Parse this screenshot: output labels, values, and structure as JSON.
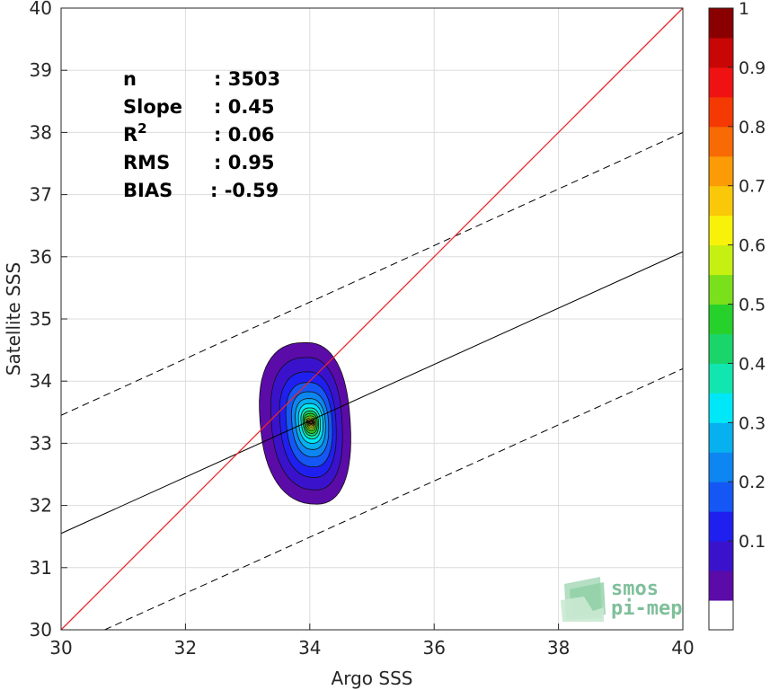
{
  "chart_data": {
    "type": "contour",
    "xlabel": "Argo SSS",
    "ylabel": "Satellite SSS",
    "xlim": [
      30,
      40
    ],
    "ylim": [
      30,
      40
    ],
    "xticks": [
      "30",
      "32",
      "34",
      "36",
      "38",
      "40"
    ],
    "yticks": [
      "30",
      "31",
      "32",
      "33",
      "34",
      "35",
      "36",
      "37",
      "38",
      "39",
      "40"
    ],
    "grid": true,
    "stats": [
      {
        "key": "n",
        "value": ": 3503"
      },
      {
        "key": "Slope",
        "value": ": 0.45"
      },
      {
        "key": "R",
        "sup": "2",
        "value": ": 0.06"
      },
      {
        "key": "RMS",
        "value": ": 0.95"
      },
      {
        "key": "BIAS",
        "value": ": -0.59"
      }
    ],
    "lines": {
      "identity": {
        "x": [
          30,
          40
        ],
        "y": [
          30,
          40
        ],
        "color": "#e8262d"
      },
      "regression": {
        "x": [
          30,
          40
        ],
        "y": [
          31.55,
          36.08
        ],
        "color": "#000000"
      },
      "upper_bound": {
        "x": [
          30,
          40
        ],
        "y": [
          33.45,
          38.0
        ],
        "color": "#000000",
        "dashed": true
      },
      "lower_bound": {
        "x": [
          30.7,
          40
        ],
        "y": [
          30.0,
          34.2
        ],
        "color": "#000000",
        "dashed": true
      }
    },
    "density": {
      "center": {
        "x": 34.02,
        "y": 33.35
      },
      "contour_levels": [
        {
          "level": 0.05,
          "x": [
            33.2,
            34.65
          ],
          "y": [
            32.02,
            34.62
          ]
        },
        {
          "level": 0.1,
          "x": [
            33.38,
            34.52
          ],
          "y": [
            32.25,
            34.38
          ]
        },
        {
          "level": 0.15,
          "x": [
            33.52,
            34.42
          ],
          "y": [
            32.45,
            34.15
          ]
        },
        {
          "level": 0.2,
          "x": [
            33.62,
            34.36
          ],
          "y": [
            32.62,
            33.98
          ]
        },
        {
          "level": 0.25,
          "x": [
            33.71,
            34.3
          ],
          "y": [
            32.78,
            33.83
          ]
        },
        {
          "level": 0.3,
          "x": [
            33.77,
            34.25
          ],
          "y": [
            32.9,
            33.72
          ]
        },
        {
          "level": 0.35,
          "x": [
            33.82,
            34.21
          ],
          "y": [
            33.0,
            33.64
          ]
        },
        {
          "level": 0.4,
          "x": [
            33.86,
            34.17
          ],
          "y": [
            33.07,
            33.57
          ]
        },
        {
          "level": 0.45,
          "x": [
            33.89,
            34.14
          ],
          "y": [
            33.12,
            33.52
          ]
        },
        {
          "level": 0.5,
          "x": [
            33.91,
            34.12
          ],
          "y": [
            33.16,
            33.48
          ]
        },
        {
          "level": 0.55,
          "x": [
            33.93,
            34.1
          ],
          "y": [
            33.2,
            33.44
          ]
        },
        {
          "level": 0.6,
          "x": [
            33.95,
            34.08
          ],
          "y": [
            33.23,
            33.41
          ]
        },
        {
          "level": 0.65,
          "x": [
            33.96,
            34.07
          ],
          "y": [
            33.26,
            33.39
          ]
        },
        {
          "level": 0.7,
          "x": [
            33.97,
            34.06
          ],
          "y": [
            33.28,
            33.37
          ]
        },
        {
          "level": 0.75,
          "x": [
            33.98,
            34.05
          ],
          "y": [
            33.3,
            33.36
          ]
        },
        {
          "level": 0.8,
          "x": [
            33.99,
            34.04
          ],
          "y": [
            33.31,
            33.35
          ]
        },
        {
          "level": 0.85,
          "x": [
            34.0,
            34.04
          ],
          "y": [
            33.32,
            33.35
          ]
        }
      ]
    },
    "colorbar": {
      "ticks": [
        "0.1",
        "0.2",
        "0.3",
        "0.4",
        "0.5",
        "0.6",
        "0.7",
        "0.8",
        "0.9",
        "1"
      ],
      "tick_values": [
        0.1,
        0.2,
        0.3,
        0.4,
        0.5,
        0.6,
        0.7,
        0.8,
        0.9,
        1.0
      ],
      "colors": [
        "#ffffff",
        "#5b0ba8",
        "#3a12cc",
        "#1f1ff0",
        "#1457f5",
        "#0d86f2",
        "#07b0ee",
        "#00e8f7",
        "#12e6b0",
        "#1ad66a",
        "#27d12c",
        "#7ae01c",
        "#c6f012",
        "#f8f20a",
        "#f9c808",
        "#fb9b06",
        "#f86a04",
        "#f43a02",
        "#f01212",
        "#c80606",
        "#8a0000"
      ]
    },
    "contour_colors": [
      "#5b0ba8",
      "#3a12cc",
      "#1f1ff0",
      "#1457f5",
      "#0d86f2",
      "#07b0ee",
      "#00e8f7",
      "#12e6b0",
      "#1ad66a",
      "#27d12c",
      "#7ae01c",
      "#c6f012",
      "#f8f20a",
      "#f9c808",
      "#fb9b06",
      "#f86a04",
      "#f43a02"
    ]
  },
  "logo": {
    "line1": "smos",
    "line2": "pi-mep"
  }
}
